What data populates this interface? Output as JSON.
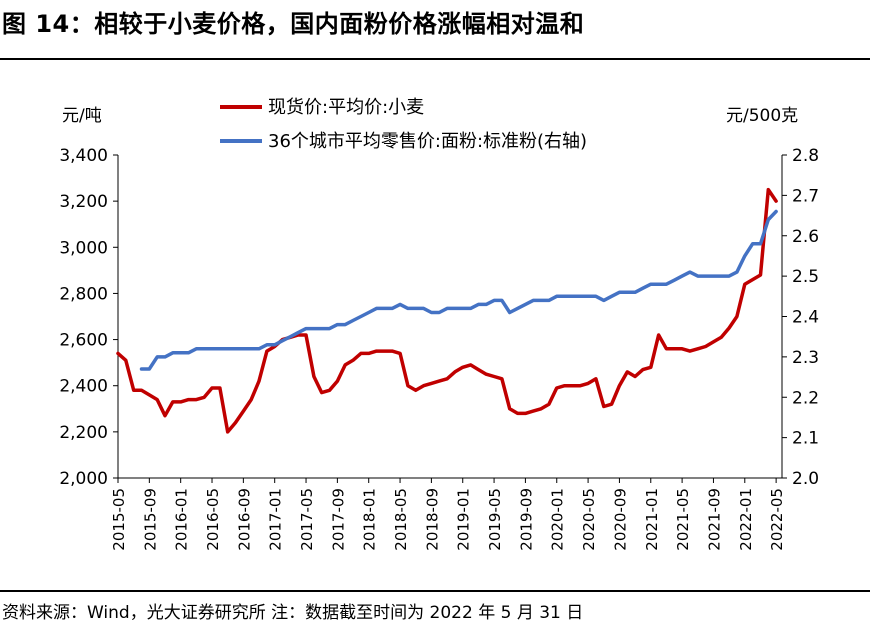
{
  "title": "图 14：相较于小麦价格，国内面粉价格涨幅相对温和",
  "footer": "资料来源：Wind，光大证券研究所   注：数据截至时间为 2022 年 5 月 31 日",
  "chart_data": {
    "type": "line",
    "y_left_unit": "元/吨",
    "y_right_unit": "元/500克",
    "ylim_left": [
      2000,
      3400
    ],
    "yticks_left": [
      "2,000",
      "2,200",
      "2,400",
      "2,600",
      "2,800",
      "3,000",
      "3,200",
      "3,400"
    ],
    "ylim_right": [
      2.0,
      2.8
    ],
    "yticks_right": [
      "2.0",
      "2.1",
      "2.2",
      "2.3",
      "2.4",
      "2.5",
      "2.6",
      "2.7",
      "2.8"
    ],
    "xticks": [
      "2015-05",
      "2015-09",
      "2016-01",
      "2016-05",
      "2016-09",
      "2017-01",
      "2017-05",
      "2017-09",
      "2018-01",
      "2018-05",
      "2018-09",
      "2019-01",
      "2019-05",
      "2019-09",
      "2020-01",
      "2020-05",
      "2020-09",
      "2021-01",
      "2021-05",
      "2021-09",
      "2022-01",
      "2022-05"
    ],
    "legend_position": "top-center",
    "grid": false,
    "series": [
      {
        "name": "现货价:平均价:小麦",
        "axis": "left",
        "color": "#c00000",
        "x": [
          "2015-05",
          "2015-06",
          "2015-07",
          "2015-08",
          "2015-09",
          "2015-10",
          "2015-11",
          "2015-12",
          "2016-01",
          "2016-02",
          "2016-03",
          "2016-04",
          "2016-05",
          "2016-06",
          "2016-07",
          "2016-08",
          "2016-09",
          "2016-10",
          "2016-11",
          "2016-12",
          "2017-01",
          "2017-02",
          "2017-03",
          "2017-04",
          "2017-05",
          "2017-06",
          "2017-07",
          "2017-08",
          "2017-09",
          "2017-10",
          "2017-11",
          "2017-12",
          "2018-01",
          "2018-02",
          "2018-03",
          "2018-04",
          "2018-05",
          "2018-06",
          "2018-07",
          "2018-08",
          "2018-09",
          "2018-10",
          "2018-11",
          "2018-12",
          "2019-01",
          "2019-02",
          "2019-03",
          "2019-04",
          "2019-05",
          "2019-06",
          "2019-07",
          "2019-08",
          "2019-09",
          "2019-10",
          "2019-11",
          "2019-12",
          "2020-01",
          "2020-02",
          "2020-03",
          "2020-04",
          "2020-05",
          "2020-06",
          "2020-07",
          "2020-08",
          "2020-09",
          "2020-10",
          "2020-11",
          "2020-12",
          "2021-01",
          "2021-02",
          "2021-03",
          "2021-04",
          "2021-05",
          "2021-06",
          "2021-07",
          "2021-08",
          "2021-09",
          "2021-10",
          "2021-11",
          "2021-12",
          "2022-01",
          "2022-02",
          "2022-03",
          "2022-04",
          "2022-05"
        ],
        "values": [
          2540,
          2510,
          2380,
          2380,
          2360,
          2340,
          2270,
          2330,
          2330,
          2340,
          2340,
          2350,
          2390,
          2390,
          2200,
          2240,
          2290,
          2340,
          2420,
          2550,
          2570,
          2600,
          2610,
          2620,
          2620,
          2440,
          2370,
          2380,
          2420,
          2490,
          2510,
          2540,
          2540,
          2550,
          2550,
          2550,
          2540,
          2400,
          2380,
          2400,
          2410,
          2420,
          2430,
          2460,
          2480,
          2490,
          2470,
          2450,
          2440,
          2430,
          2300,
          2280,
          2280,
          2290,
          2300,
          2320,
          2390,
          2400,
          2400,
          2400,
          2410,
          2430,
          2310,
          2320,
          2400,
          2460,
          2440,
          2470,
          2480,
          2620,
          2560,
          2560,
          2560,
          2550,
          2560,
          2570,
          2590,
          2610,
          2650,
          2700,
          2840,
          2860,
          2880,
          3250,
          3200
        ]
      },
      {
        "name": "36个城市平均零售价:面粉:标准粉(右轴)",
        "axis": "right",
        "color": "#4472c4",
        "x": [
          "2015-05",
          "2015-06",
          "2015-07",
          "2015-08",
          "2015-09",
          "2015-10",
          "2015-11",
          "2015-12",
          "2016-01",
          "2016-02",
          "2016-03",
          "2016-04",
          "2016-05",
          "2016-06",
          "2016-07",
          "2016-08",
          "2016-09",
          "2016-10",
          "2016-11",
          "2016-12",
          "2017-01",
          "2017-02",
          "2017-03",
          "2017-04",
          "2017-05",
          "2017-06",
          "2017-07",
          "2017-08",
          "2017-09",
          "2017-10",
          "2017-11",
          "2017-12",
          "2018-01",
          "2018-02",
          "2018-03",
          "2018-04",
          "2018-05",
          "2018-06",
          "2018-07",
          "2018-08",
          "2018-09",
          "2018-10",
          "2018-11",
          "2018-12",
          "2019-01",
          "2019-02",
          "2019-03",
          "2019-04",
          "2019-05",
          "2019-06",
          "2019-07",
          "2019-08",
          "2019-09",
          "2019-10",
          "2019-11",
          "2019-12",
          "2020-01",
          "2020-02",
          "2020-03",
          "2020-04",
          "2020-05",
          "2020-06",
          "2020-07",
          "2020-08",
          "2020-09",
          "2020-10",
          "2020-11",
          "2020-12",
          "2021-01",
          "2021-02",
          "2021-03",
          "2021-04",
          "2021-05",
          "2021-06",
          "2021-07",
          "2021-08",
          "2021-09",
          "2021-10",
          "2021-11",
          "2021-12",
          "2022-01",
          "2022-02",
          "2022-03",
          "2022-04",
          "2022-05"
        ],
        "values": [
          null,
          null,
          null,
          2.27,
          2.27,
          2.3,
          2.3,
          2.31,
          2.31,
          2.31,
          2.32,
          2.32,
          2.32,
          2.32,
          2.32,
          2.32,
          2.32,
          2.32,
          2.32,
          2.33,
          2.33,
          2.34,
          2.35,
          2.36,
          2.37,
          2.37,
          2.37,
          2.37,
          2.38,
          2.38,
          2.39,
          2.4,
          2.41,
          2.42,
          2.42,
          2.42,
          2.43,
          2.42,
          2.42,
          2.42,
          2.41,
          2.41,
          2.42,
          2.42,
          2.42,
          2.42,
          2.43,
          2.43,
          2.44,
          2.44,
          2.41,
          2.42,
          2.43,
          2.44,
          2.44,
          2.44,
          2.45,
          2.45,
          2.45,
          2.45,
          2.45,
          2.45,
          2.44,
          2.45,
          2.46,
          2.46,
          2.46,
          2.47,
          2.48,
          2.48,
          2.48,
          2.49,
          2.5,
          2.51,
          2.5,
          2.5,
          2.5,
          2.5,
          2.5,
          2.51,
          2.55,
          2.58,
          2.58,
          2.64,
          2.66
        ]
      }
    ]
  }
}
